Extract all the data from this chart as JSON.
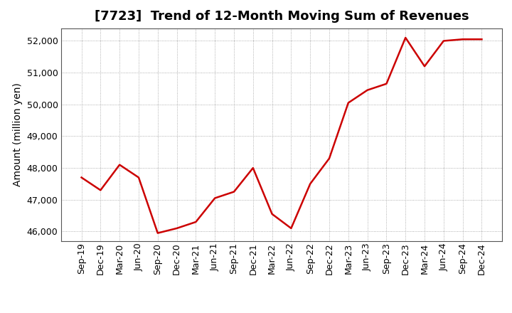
{
  "title": "[7723]  Trend of 12-Month Moving Sum of Revenues",
  "ylabel": "Amount (million yen)",
  "line_color": "#cc0000",
  "background_color": "#ffffff",
  "plot_bg_color": "#ffffff",
  "grid_color": "#999999",
  "ylim": [
    45700,
    52400
  ],
  "yticks": [
    46000,
    47000,
    48000,
    49000,
    50000,
    51000,
    52000
  ],
  "labels": [
    "Sep-19",
    "Dec-19",
    "Mar-20",
    "Jun-20",
    "Sep-20",
    "Dec-20",
    "Mar-21",
    "Jun-21",
    "Sep-21",
    "Dec-21",
    "Mar-22",
    "Jun-22",
    "Sep-22",
    "Dec-22",
    "Mar-23",
    "Jun-23",
    "Sep-23",
    "Dec-23",
    "Mar-24",
    "Jun-24",
    "Sep-24",
    "Dec-24"
  ],
  "values": [
    47700,
    47300,
    48100,
    47700,
    45950,
    46100,
    46300,
    47050,
    47250,
    48000,
    46550,
    46100,
    47500,
    48300,
    50050,
    50450,
    50650,
    52100,
    51200,
    52000,
    52050,
    52050
  ],
  "title_fontsize": 13,
  "ylabel_fontsize": 10,
  "tick_fontsize": 9,
  "linewidth": 1.8
}
